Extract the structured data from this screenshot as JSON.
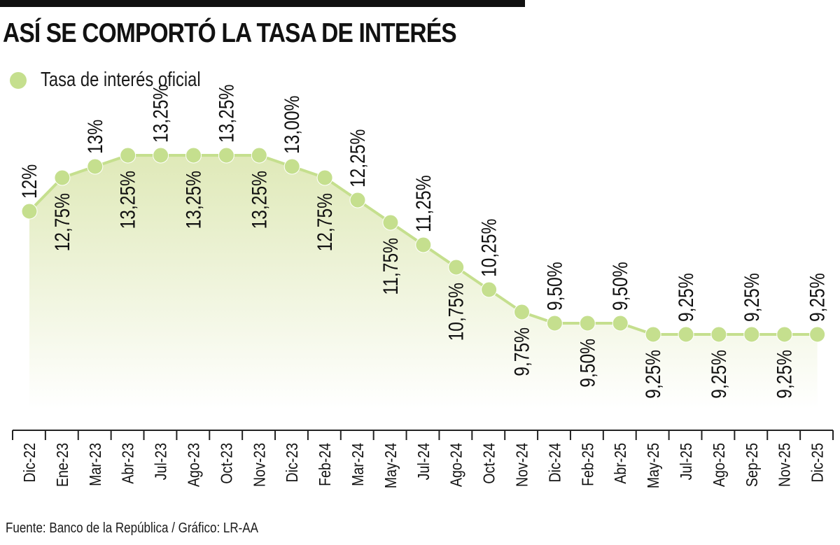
{
  "title": "ASÍ SE COMPORTÓ LA TASA DE INTERÉS",
  "legend": {
    "label": "Tasa de interés oficial",
    "color": "#c5df8e"
  },
  "source": "Fuente: Banco de la República / Gráfico: LR-AA",
  "colors": {
    "line": "#c5df8e",
    "marker": "#c5df8e",
    "fill_top": "#dfe9b8",
    "fill_bottom": "#ffffff",
    "text": "#111111"
  },
  "chart_data": {
    "type": "line",
    "categories": [
      "Dic-22",
      "Ene-23",
      "Mar-23",
      "Abr-23",
      "Jul-23",
      "Ago-23",
      "Oct-23",
      "Nov-23",
      "Dic-23",
      "Feb-24",
      "Mar-24",
      "May-24",
      "Jul-24",
      "Ago-24",
      "Oct-24",
      "Nov-24",
      "Dic-24",
      "Feb-25",
      "Abr-25",
      "May-25",
      "Jul-25",
      "Ago-25",
      "Sep-25",
      "Nov-25",
      "Dic-25"
    ],
    "series": [
      {
        "name": "Tasa de interés oficial",
        "values": [
          12,
          12.75,
          13,
          13.25,
          13.25,
          13.25,
          13.25,
          13.25,
          13,
          12.75,
          12.25,
          11.75,
          11.25,
          10.75,
          10.25,
          9.75,
          9.5,
          9.5,
          9.5,
          9.25,
          9.25,
          9.25,
          9.25,
          9.25,
          9.25
        ],
        "labels": [
          "12%",
          "12,75%",
          "13%",
          "13,25%",
          "13,25%",
          "13,25%",
          "13,25%",
          "13,25%",
          "13,00%",
          "12,75%",
          "12,25%",
          "11,75%",
          "11,25%",
          "10,75%",
          "10,25%",
          "9,75%",
          "9,50%",
          "9,50%",
          "9,50%",
          "9,25%",
          "9,25%",
          "9,25%",
          "9,25%",
          "9,25%",
          "9,25%"
        ]
      }
    ],
    "title": "ASÍ SE COMPORTÓ LA TASA DE INTERÉS",
    "legend": "top-left",
    "grid": false
  }
}
